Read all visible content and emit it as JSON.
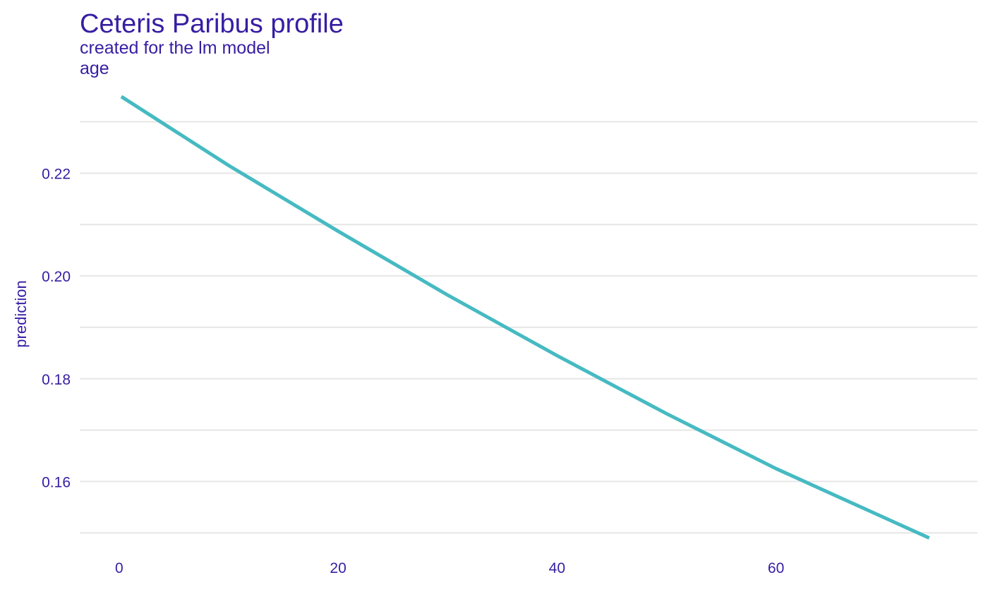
{
  "chart_data": {
    "type": "line",
    "title": "Ceteris Paribus profile",
    "subtitle": "created for the lm model",
    "panel_label": "age",
    "xlabel": "",
    "ylabel": "prediction",
    "xlim": [
      -3.6,
      78.4
    ],
    "ylim": [
      0.1477,
      0.2375
    ],
    "x_ticks": [
      0,
      20,
      40,
      60
    ],
    "x_tick_labels": [
      "0",
      "20",
      "40",
      "60"
    ],
    "y_ticks": [
      0.16,
      0.18,
      0.2,
      0.22
    ],
    "y_tick_labels": [
      "0.16",
      "0.18",
      "0.20",
      "0.22"
    ],
    "y_minor_gridlines": [
      0.15,
      0.17,
      0.19,
      0.21,
      0.23
    ],
    "grid": true,
    "legend": "none",
    "series": [
      {
        "color": "#46bac2",
        "x": [
          0.2,
          10,
          20,
          30,
          40,
          50,
          60,
          74
        ],
        "y": [
          0.2349,
          0.2215,
          0.2087,
          0.1963,
          0.1845,
          0.1732,
          0.1625,
          0.149
        ]
      }
    ],
    "colors": {
      "text": "#371ea3",
      "grid": "#e6e6e6",
      "line": "#46bac2"
    }
  }
}
